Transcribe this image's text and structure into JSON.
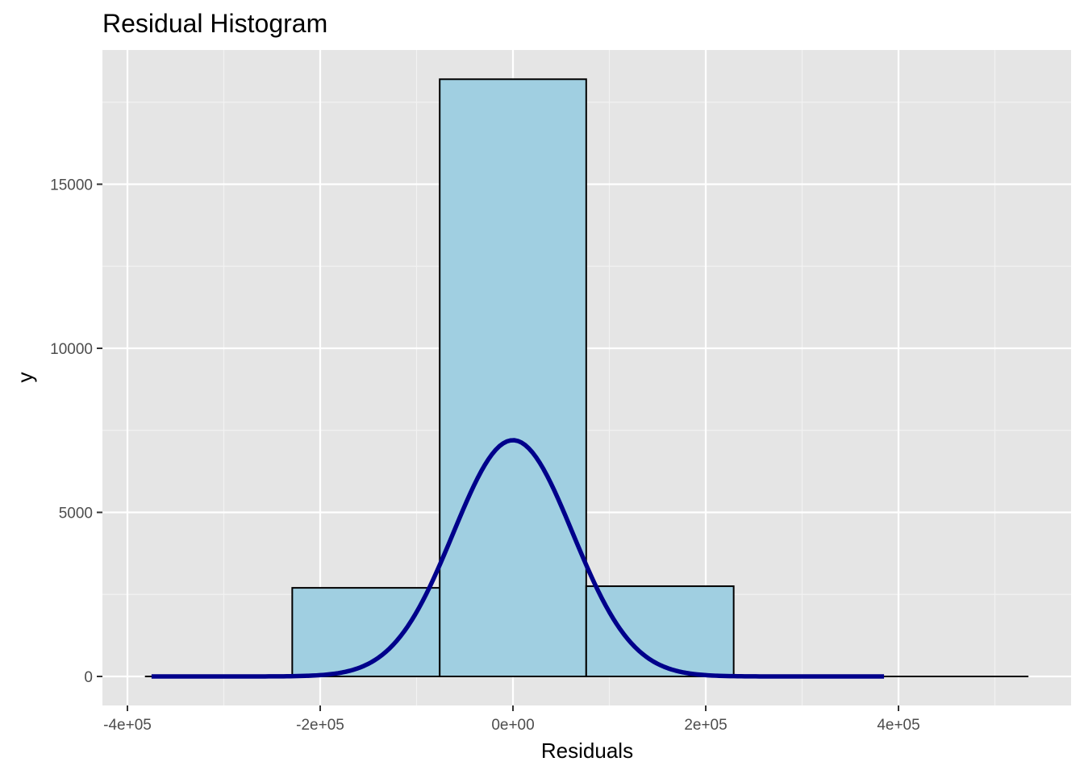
{
  "chart_data": {
    "type": "bar",
    "title": "Residual Histogram",
    "xlabel": "Residuals",
    "ylabel": "y",
    "xlim": [
      -400000,
      540000
    ],
    "ylim": [
      0,
      18200
    ],
    "x_ticks": [
      {
        "value": -400000,
        "label": "-4e+05"
      },
      {
        "value": -200000,
        "label": "-2e+05"
      },
      {
        "value": 0,
        "label": "0e+00"
      },
      {
        "value": 200000,
        "label": "2e+05"
      },
      {
        "value": 400000,
        "label": "4e+05"
      }
    ],
    "y_ticks": [
      {
        "value": 0,
        "label": "0"
      },
      {
        "value": 5000,
        "label": "5000"
      },
      {
        "value": 10000,
        "label": "10000"
      },
      {
        "value": 15000,
        "label": "15000"
      }
    ],
    "grid": true,
    "bins": [
      {
        "x0": -381000,
        "x1": -229000,
        "count": 0
      },
      {
        "x0": -229000,
        "x1": -76000,
        "count": 2700
      },
      {
        "x0": -76000,
        "x1": 76000,
        "count": 18200
      },
      {
        "x0": 76000,
        "x1": 229000,
        "count": 2750
      },
      {
        "x0": 229000,
        "x1": 381000,
        "count": 0
      },
      {
        "x0": 381000,
        "x1": 534000,
        "count": 0
      }
    ],
    "density_curve": {
      "type": "normal",
      "mean": 0,
      "sd": 62000,
      "peak": 7200,
      "x_range": [
        -375000,
        385000
      ]
    },
    "colors": {
      "bar_fill": "#a0cfe1",
      "bar_stroke": "#000000",
      "curve": "#00008b",
      "panel_background": "#e5e5e5",
      "grid_major": "#ffffff",
      "grid_minor": "#f2f2f2",
      "tick_label": "#4d4d4d"
    }
  }
}
